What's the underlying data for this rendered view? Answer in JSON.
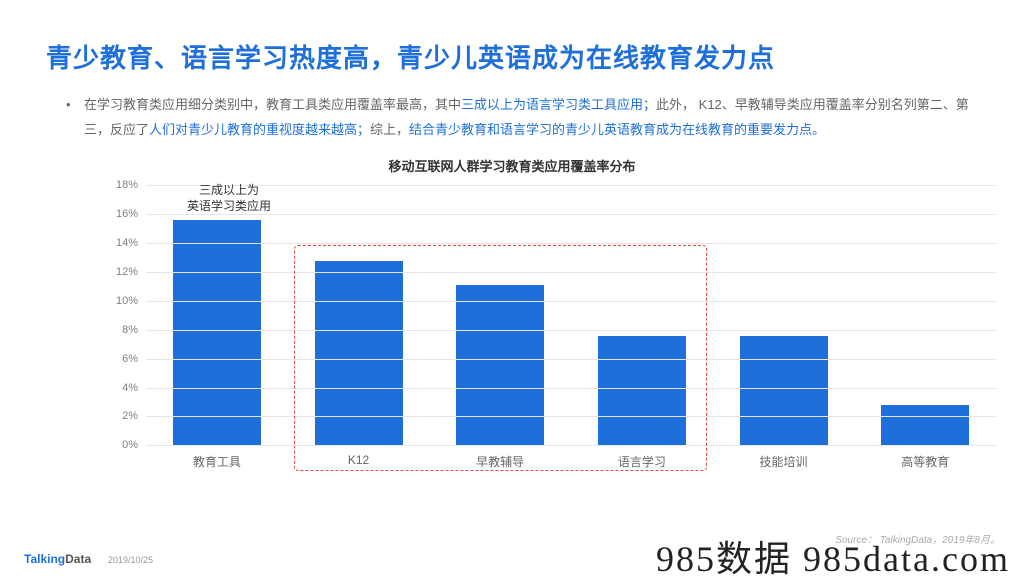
{
  "title": "青少教育、语言学习热度高，青少儿英语成为在线教育发力点",
  "body": {
    "p1a": "在学习教育类应用细分类别中，教育工具类应用覆盖率最高，其中",
    "p1b_hl": "三成以上为语言学习类工具应用；",
    "p1c": "此外， K12、早教辅导类应用覆盖率分别名列第二、第三，反应了",
    "p1d_hl": "人们对青少儿教育的重视度越来越高；",
    "p1e": "综上，",
    "p1f_hl": "结合青少教育和语言学习的青少儿英语教育成为在线教育的重要发力点。"
  },
  "chart": {
    "title": "移动互联网人群学习教育类应用覆盖率分布",
    "type": "bar",
    "categories": [
      "教育工具",
      "K12",
      "早教辅导",
      "语言学习",
      "技能培训",
      "高等教育"
    ],
    "values": [
      15.6,
      12.8,
      11.1,
      7.6,
      7.6,
      2.8
    ],
    "ylim_max": 18,
    "ytick_step": 2,
    "yticks": [
      "0%",
      "2%",
      "4%",
      "6%",
      "8%",
      "10%",
      "12%",
      "14%",
      "16%",
      "18%"
    ],
    "bar_color": "#1e6fd9",
    "grid_color": "#e6e6e6",
    "label_color": "#808080",
    "annotation": "三成以上为\n英语学习类应用",
    "highlight_range": [
      1,
      3
    ],
    "highlight_border_color": "#e74c3c"
  },
  "footer": {
    "logo_a": "Talking",
    "logo_b": "Data",
    "date": "2019/10/25",
    "source": "Source： TalkingData，2019年8月。"
  },
  "watermark": "985数据 985data.com"
}
